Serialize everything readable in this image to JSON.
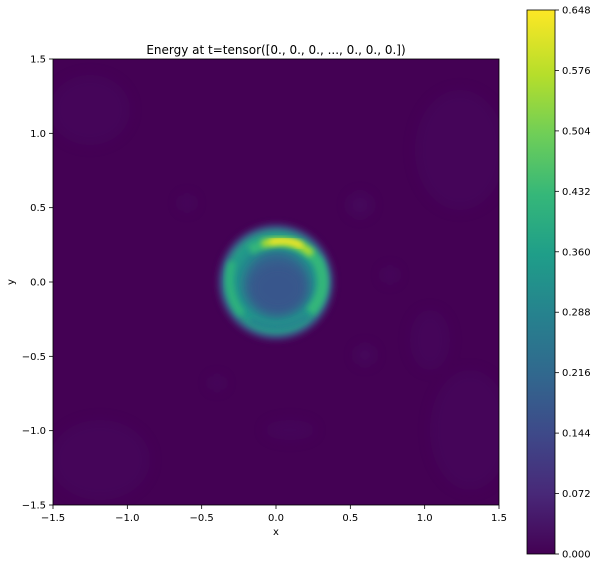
{
  "chart_data": {
    "type": "heatmap",
    "title": "Energy at t=tensor([0., 0., 0.,  ..., 0., 0., 0.])",
    "xlabel": "x",
    "ylabel": "y",
    "xlim": [
      -1.5,
      1.5
    ],
    "ylim": [
      -1.5,
      1.5
    ],
    "x_ticks": [
      "−1.5",
      "−1.0",
      "−0.5",
      "0.0",
      "0.5",
      "1.0",
      "1.5"
    ],
    "y_ticks": [
      "1.5",
      "1.0",
      "0.5",
      "0.0",
      "−0.5",
      "−1.0",
      "−1.5"
    ],
    "x_tick_values": [
      -1.5,
      -1.0,
      -0.5,
      0.0,
      0.5,
      1.0,
      1.5
    ],
    "y_tick_values": [
      1.5,
      1.0,
      0.5,
      0.0,
      -0.5,
      -1.0,
      -1.5
    ],
    "colormap": "viridis",
    "colorbar": {
      "range": [
        0.0,
        0.648
      ],
      "ticks": [
        "0.648",
        "0.576",
        "0.504",
        "0.432",
        "0.360",
        "0.288",
        "0.216",
        "0.144",
        "0.072",
        "0.000"
      ],
      "tick_values": [
        0.648,
        0.576,
        0.504,
        0.432,
        0.36,
        0.288,
        0.216,
        0.144,
        0.072,
        0.0
      ]
    },
    "features": {
      "background_energy": 0.0,
      "ring_center": [
        0.0,
        0.0
      ],
      "ring_outer_radius": 0.4,
      "ring_peak_energy": 0.6,
      "ring_peak_location": [
        0.02,
        0.26
      ],
      "inner_disk_energy": 0.18
    }
  },
  "colors": {
    "viridis": [
      "#440154",
      "#482878",
      "#3e4989",
      "#31688e",
      "#26828e",
      "#1f9e89",
      "#35b779",
      "#6ece58",
      "#b5de2b",
      "#fde725"
    ]
  }
}
